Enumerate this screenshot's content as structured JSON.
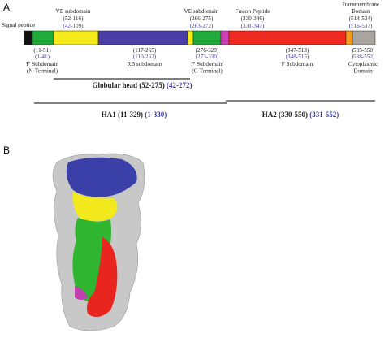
{
  "panels": [
    {
      "label": "A"
    },
    {
      "label": "B"
    }
  ],
  "domain_map": {
    "signal_peptide": "Signal peptide",
    "top_labels": [
      {
        "name_lines": [
          "VE subdomain"
        ],
        "range": "(52-116)",
        "alt_range": "(42-109)"
      },
      {
        "name_lines": [
          "VE subdomain"
        ],
        "range": "(266-275)",
        "alt_range": "(263-272)"
      },
      {
        "name_lines": [
          "Fusion Peptide"
        ],
        "range": "(330-346)",
        "alt_range": "(331-347)"
      },
      {
        "name_lines": [
          "Transmembrane",
          "Domain"
        ],
        "range": "(514-534)",
        "alt_range": "(516-537)"
      }
    ],
    "bottom_labels": [
      {
        "range": "(11-51)",
        "alt_range": "(1-41)",
        "name_lines": [
          "F' Subdomain",
          "(N-Terminal)"
        ]
      },
      {
        "range": "(117-265)",
        "alt_range": "(110-262)",
        "name_lines": [
          "RB subdomain"
        ]
      },
      {
        "range": "(276-329)",
        "alt_range": "(273-330)",
        "name_lines": [
          "F' Subdomain",
          "(C-Terminal)"
        ]
      },
      {
        "range": "(347-513)",
        "alt_range": "(348-515)",
        "name_lines": [
          "F Subdomain"
        ]
      },
      {
        "range": "(535-550)",
        "alt_range": "(538-552)",
        "name_lines": [
          "Cytoplasmic",
          "Domain"
        ]
      }
    ],
    "regions": [
      {
        "name": "Globular head (52-275)",
        "alt_range": "(42-272)"
      },
      {
        "name": "HA1 (11-329)",
        "alt_range": "(1-330)"
      },
      {
        "name": "HA2 (330-550)",
        "alt_range": "(331-552)"
      }
    ]
  }
}
